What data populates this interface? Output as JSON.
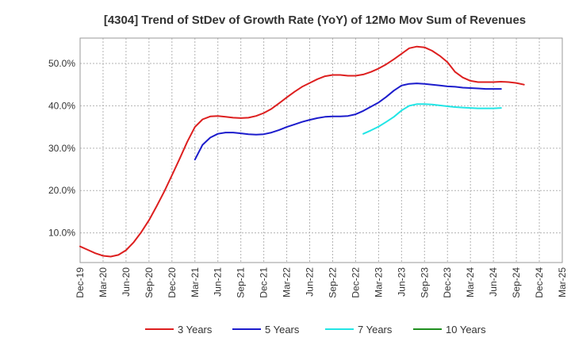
{
  "chart_data": {
    "type": "line",
    "title": "[4304]  Trend of StDev of Growth Rate (YoY) of 12Mo Mov Sum of Revenues",
    "xlabel": "",
    "ylabel": "",
    "ylim": [
      3,
      56
    ],
    "y_ticks": [
      10,
      20,
      30,
      40,
      50
    ],
    "y_tick_labels": [
      "10.0%",
      "20.0%",
      "30.0%",
      "40.0%",
      "50.0%"
    ],
    "x_tick_labels": [
      "Dec-19",
      "Mar-20",
      "Jun-20",
      "Sep-20",
      "Dec-20",
      "Mar-21",
      "Jun-21",
      "Sep-21",
      "Dec-21",
      "Mar-22",
      "Jun-22",
      "Sep-22",
      "Dec-22",
      "Mar-23",
      "Jun-23",
      "Sep-23",
      "Dec-23",
      "Mar-24",
      "Jun-24",
      "Sep-24",
      "Dec-24",
      "Mar-25"
    ],
    "grid": true,
    "legend_position": "bottom",
    "series": [
      {
        "name": "3 Years",
        "color": "#dd1f1f",
        "points": [
          [
            0,
            6.8
          ],
          [
            1,
            6.0
          ],
          [
            2,
            5.2
          ],
          [
            3,
            4.6
          ],
          [
            4,
            4.4
          ],
          [
            5,
            4.8
          ],
          [
            6,
            5.9
          ],
          [
            7,
            7.8
          ],
          [
            8,
            10.2
          ],
          [
            9,
            13.0
          ],
          [
            10,
            16.3
          ],
          [
            11,
            19.8
          ],
          [
            12,
            23.6
          ],
          [
            13,
            27.5
          ],
          [
            14,
            31.5
          ],
          [
            15,
            35.0
          ],
          [
            16,
            36.8
          ],
          [
            17,
            37.5
          ],
          [
            18,
            37.6
          ],
          [
            19,
            37.4
          ],
          [
            20,
            37.2
          ],
          [
            21,
            37.1
          ],
          [
            22,
            37.2
          ],
          [
            23,
            37.6
          ],
          [
            24,
            38.3
          ],
          [
            25,
            39.3
          ],
          [
            26,
            40.6
          ],
          [
            27,
            42.0
          ],
          [
            28,
            43.3
          ],
          [
            29,
            44.5
          ],
          [
            30,
            45.4
          ],
          [
            31,
            46.3
          ],
          [
            32,
            47.0
          ],
          [
            33,
            47.3
          ],
          [
            34,
            47.3
          ],
          [
            35,
            47.1
          ],
          [
            36,
            47.1
          ],
          [
            37,
            47.4
          ],
          [
            38,
            48.0
          ],
          [
            39,
            48.8
          ],
          [
            40,
            49.8
          ],
          [
            41,
            51.0
          ],
          [
            42,
            52.3
          ],
          [
            43,
            53.6
          ],
          [
            44,
            54.0
          ],
          [
            45,
            53.8
          ],
          [
            46,
            53.0
          ],
          [
            47,
            51.8
          ],
          [
            48,
            50.3
          ],
          [
            49,
            48.0
          ],
          [
            50,
            46.7
          ],
          [
            51,
            45.9
          ],
          [
            52,
            45.6
          ],
          [
            53,
            45.6
          ],
          [
            54,
            45.6
          ],
          [
            55,
            45.7
          ],
          [
            56,
            45.6
          ],
          [
            57,
            45.4
          ],
          [
            58,
            45.0
          ]
        ]
      },
      {
        "name": "5 Years",
        "color": "#1c1ccc",
        "points": [
          [
            15,
            27.3
          ],
          [
            16,
            30.8
          ],
          [
            17,
            32.5
          ],
          [
            18,
            33.4
          ],
          [
            19,
            33.7
          ],
          [
            20,
            33.7
          ],
          [
            21,
            33.5
          ],
          [
            22,
            33.3
          ],
          [
            23,
            33.2
          ],
          [
            24,
            33.3
          ],
          [
            25,
            33.7
          ],
          [
            26,
            34.3
          ],
          [
            27,
            35.0
          ],
          [
            28,
            35.6
          ],
          [
            29,
            36.2
          ],
          [
            30,
            36.7
          ],
          [
            31,
            37.1
          ],
          [
            32,
            37.4
          ],
          [
            33,
            37.5
          ],
          [
            34,
            37.5
          ],
          [
            35,
            37.6
          ],
          [
            36,
            38.0
          ],
          [
            37,
            38.8
          ],
          [
            38,
            39.8
          ],
          [
            39,
            40.8
          ],
          [
            40,
            42.1
          ],
          [
            41,
            43.6
          ],
          [
            42,
            44.8
          ],
          [
            43,
            45.2
          ],
          [
            44,
            45.3
          ],
          [
            45,
            45.2
          ],
          [
            46,
            45.0
          ],
          [
            47,
            44.8
          ],
          [
            48,
            44.6
          ],
          [
            49,
            44.5
          ],
          [
            50,
            44.3
          ],
          [
            51,
            44.2
          ],
          [
            52,
            44.1
          ],
          [
            53,
            44.0
          ],
          [
            54,
            44.0
          ],
          [
            55,
            44.0
          ]
        ]
      },
      {
        "name": "7 Years",
        "color": "#22e5e5",
        "points": [
          [
            37,
            33.4
          ],
          [
            38,
            34.2
          ],
          [
            39,
            35.1
          ],
          [
            40,
            36.2
          ],
          [
            41,
            37.4
          ],
          [
            42,
            38.9
          ],
          [
            43,
            40.0
          ],
          [
            44,
            40.4
          ],
          [
            45,
            40.4
          ],
          [
            46,
            40.3
          ],
          [
            47,
            40.1
          ],
          [
            48,
            39.9
          ],
          [
            49,
            39.7
          ],
          [
            50,
            39.6
          ],
          [
            51,
            39.5
          ],
          [
            52,
            39.4
          ],
          [
            53,
            39.4
          ],
          [
            54,
            39.4
          ],
          [
            55,
            39.5
          ]
        ]
      },
      {
        "name": "10 Years",
        "color": "#1f8f1f",
        "points": []
      }
    ]
  }
}
